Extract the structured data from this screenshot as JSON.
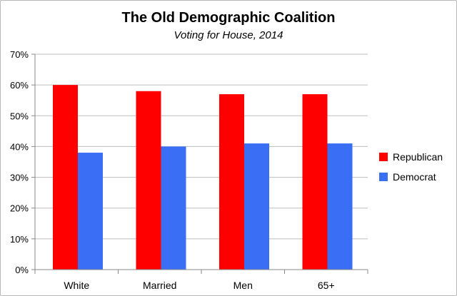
{
  "chart_data": {
    "type": "bar",
    "title": "The Old Demographic Coalition",
    "subtitle": "Voting for House, 2014",
    "categories": [
      "White",
      "Married",
      "Men",
      "65+"
    ],
    "series": [
      {
        "name": "Republican",
        "values": [
          60,
          58,
          57,
          57
        ],
        "color": "#ff0000"
      },
      {
        "name": "Democrat",
        "values": [
          38,
          40,
          41,
          41
        ],
        "color": "#3a6ef5"
      }
    ],
    "ylim": [
      0,
      70
    ],
    "yticks": [
      0,
      10,
      20,
      30,
      40,
      50,
      60,
      70
    ],
    "ytick_format": "percent",
    "grid": "horizontal",
    "legend_position": "right"
  }
}
